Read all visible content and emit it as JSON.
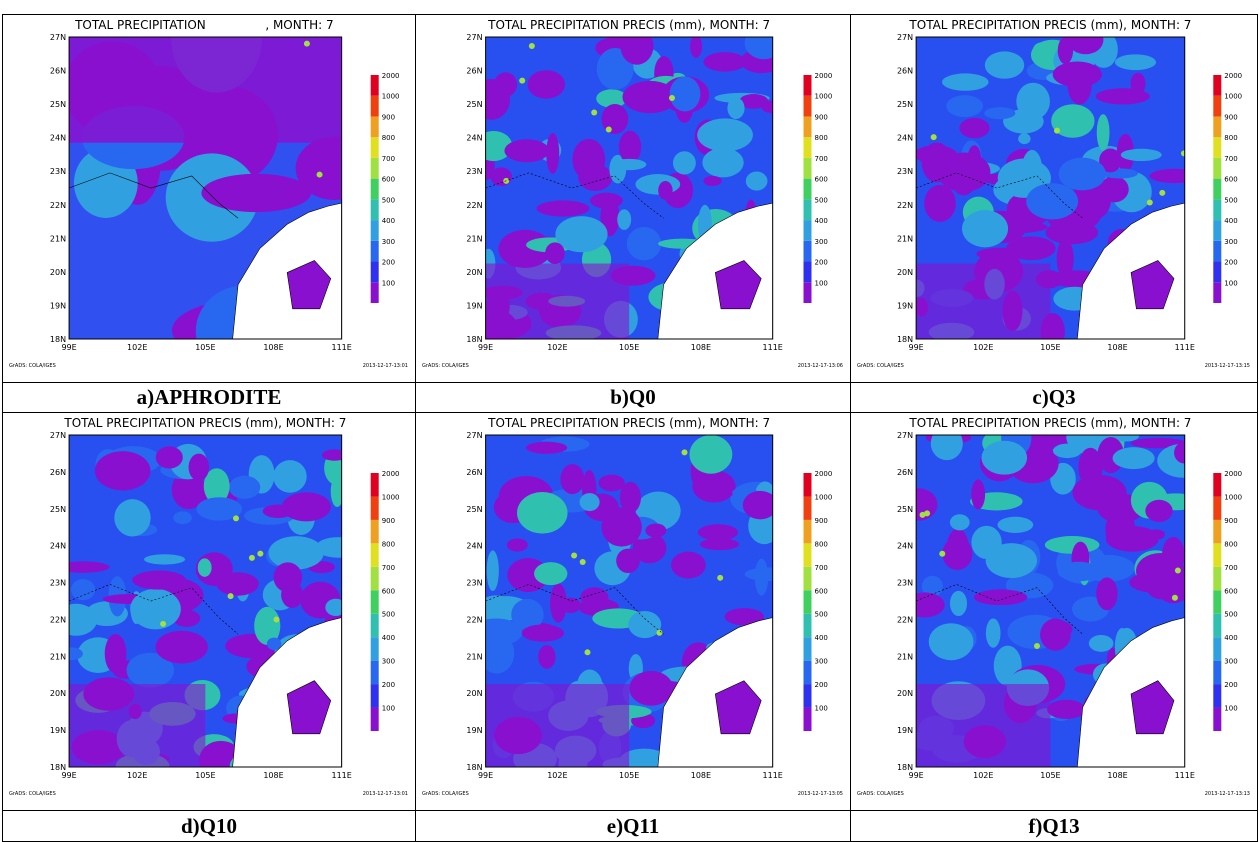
{
  "lat_labels": [
    "18N",
    "19N",
    "20N",
    "21N",
    "22N",
    "23N",
    "24N",
    "25N",
    "26N",
    "27N"
  ],
  "lon_labels": [
    "99E",
    "102E",
    "105E",
    "108E",
    "111E"
  ],
  "legend_labels": [
    "100",
    "200",
    "300",
    "400",
    "500",
    "600",
    "700",
    "800",
    "900",
    "1000",
    "2000"
  ],
  "footer": "GrADS: COLA/IGES",
  "panels": [
    {
      "title": "TOTAL PRECIPITATION",
      "title_right": ", MONTH: 7",
      "timestamp": "2013-12-17-13:01",
      "caption": "a)APHRODITE"
    },
    {
      "title": "TOTAL PRECIPITATION PRECIS (mm), MONTH: 7",
      "timestamp": "2013-12-17-13:06",
      "caption": "b)Q0"
    },
    {
      "title": "TOTAL PRECIPITATION PRECIS (mm), MONTH: 7",
      "timestamp": "2013-12-17-13:15",
      "caption": "c)Q3"
    },
    {
      "title": "TOTAL PRECIPITATION PRECIS (mm), MONTH: 7",
      "timestamp": "2013-12-17-13:01",
      "caption": "d)Q10"
    },
    {
      "title": "TOTAL PRECIPITATION PRECIS (mm), MONTH: 7",
      "timestamp": "2013-12-17-13:05",
      "caption": "e)Q11"
    },
    {
      "title": "TOTAL PRECIPITATION PRECIS (mm), MONTH: 7",
      "timestamp": "2013-12-17-13:13",
      "caption": "f)Q13"
    }
  ]
}
